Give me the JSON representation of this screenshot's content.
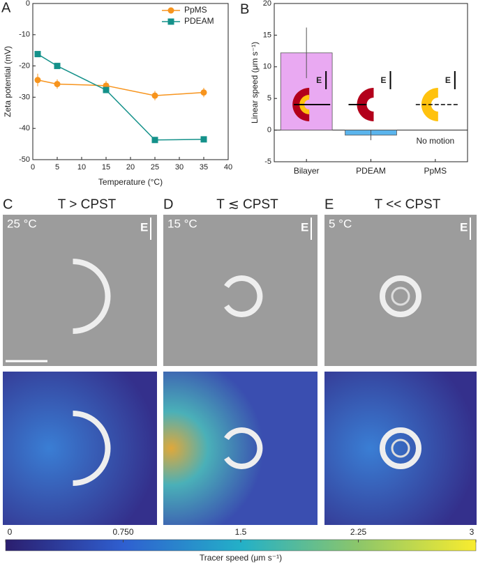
{
  "chart_data": [
    {
      "type": "line",
      "panel": "A",
      "x": [
        1,
        5,
        15,
        25,
        35
      ],
      "xlabel": "Temperature (°C)",
      "ylabel": "Zeta potential (mV)",
      "xlim": [
        0,
        40
      ],
      "xticks": [
        0,
        5,
        10,
        15,
        20,
        25,
        30,
        35,
        40
      ],
      "ylim": [
        -50,
        0
      ],
      "yticks": [
        0,
        -10,
        -20,
        -30,
        -40,
        -50
      ],
      "legend": "upper right",
      "series": [
        {
          "name": "PpMS",
          "color": "#f7941d",
          "marker": "circle",
          "values": [
            -24.5,
            -25.8,
            -26.3,
            -29.5,
            -28.5
          ],
          "errors": [
            2,
            1.5,
            1.5,
            1.5,
            1.5
          ]
        },
        {
          "name": "PDEAM",
          "color": "#14918a",
          "marker": "square",
          "values": [
            -16.2,
            -20,
            -27.7,
            -43.7,
            -43.5
          ],
          "errors": [
            0.5,
            0.5,
            0.5,
            0.5,
            0.5
          ]
        }
      ]
    },
    {
      "type": "bar",
      "panel": "B",
      "categories": [
        "Bilayer",
        "PDEAM",
        "PpMS"
      ],
      "values": [
        12.2,
        -0.8,
        null
      ],
      "errors": [
        4,
        0.8,
        null
      ],
      "colors": [
        "#e9a9f2",
        "#5bb4ec",
        "#cccccc"
      ],
      "ylabel": "Linear speed (μm s⁻¹)",
      "ylim": [
        -5,
        20
      ],
      "yticks": [
        -5,
        0,
        5,
        10,
        15,
        20
      ],
      "annotation": "No motion",
      "field_label": "E"
    }
  ],
  "images": [
    {
      "panel": "C",
      "title": "T > CPST",
      "temperature": "25 °C",
      "field": "E"
    },
    {
      "panel": "D",
      "title": "T ≲ CPST",
      "temperature": "15 °C",
      "field": "E"
    },
    {
      "panel": "E",
      "title": "T << CPST",
      "temperature": "5 °C",
      "field": "E"
    }
  ],
  "colorbar": {
    "label": "Tracer speed (μm s⁻¹)",
    "lim": [
      0,
      3
    ],
    "ticks": [
      0,
      {
        "value": 0.75,
        "label": "0.750"
      },
      1.5,
      2.25,
      3
    ]
  }
}
